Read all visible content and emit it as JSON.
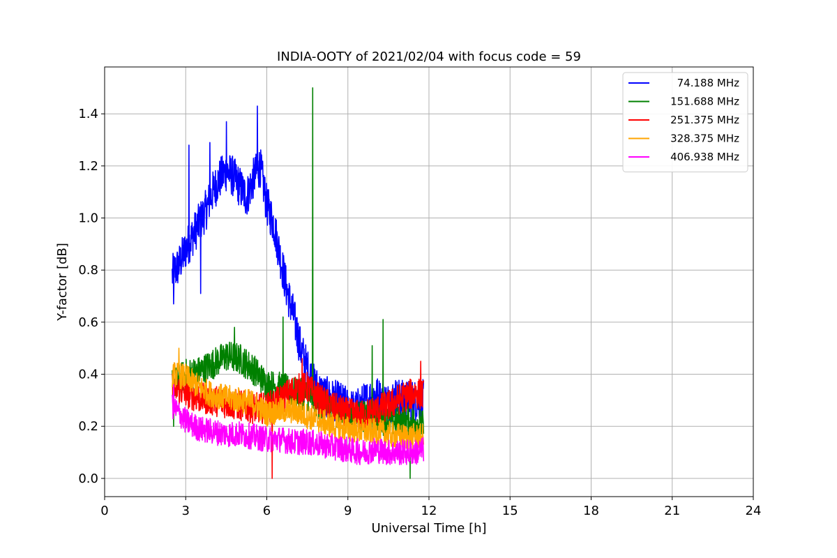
{
  "chart_data": {
    "type": "line",
    "title": "INDIA-OOTY of 2021/02/04 with focus code = 59",
    "xlabel": "Universal Time [h]",
    "ylabel": "Y-factor [dB]",
    "xlim": [
      0,
      24
    ],
    "ylim": [
      -0.07,
      1.58
    ],
    "x_ticks": [
      0,
      3,
      6,
      9,
      12,
      15,
      18,
      21,
      24
    ],
    "y_ticks": [
      0.0,
      0.2,
      0.4,
      0.6,
      0.8,
      1.0,
      1.2,
      1.4
    ],
    "y_tick_labels": [
      "0.0",
      "0.2",
      "0.4",
      "0.6",
      "0.8",
      "1.0",
      "1.2",
      "1.4"
    ],
    "grid": true,
    "legend_position": "top-right",
    "series": [
      {
        "name": "74.188 MHz",
        "color": "#0000ff",
        "x": [
          2.5,
          2.75,
          3.0,
          3.25,
          3.5,
          3.75,
          4.0,
          4.25,
          4.5,
          4.75,
          5.0,
          5.25,
          5.5,
          5.75,
          6.0,
          6.25,
          6.5,
          6.75,
          7.0,
          7.25,
          7.5,
          7.75,
          8.0,
          8.25,
          8.5,
          8.75,
          9.0,
          9.25,
          9.5,
          9.75,
          10.0,
          10.25,
          10.5,
          10.75,
          11.0,
          11.25,
          11.5,
          11.8
        ],
        "y": [
          0.78,
          0.82,
          0.88,
          0.93,
          0.98,
          1.03,
          1.1,
          1.15,
          1.18,
          1.16,
          1.12,
          1.08,
          1.15,
          1.2,
          1.05,
          0.98,
          0.85,
          0.72,
          0.62,
          0.5,
          0.42,
          0.36,
          0.33,
          0.31,
          0.3,
          0.29,
          0.27,
          0.26,
          0.28,
          0.3,
          0.32,
          0.3,
          0.29,
          0.31,
          0.3,
          0.3,
          0.3,
          0.3
        ],
        "noise": 0.08,
        "spikes": [
          [
            3.12,
            1.28
          ],
          [
            3.9,
            1.29
          ],
          [
            4.5,
            1.37
          ],
          [
            5.65,
            1.43
          ],
          [
            2.55,
            0.67
          ],
          [
            3.55,
            0.71
          ]
        ]
      },
      {
        "name": "151.688 MHz",
        "color": "#008000",
        "x": [
          2.5,
          3.0,
          3.5,
          4.0,
          4.5,
          5.0,
          5.5,
          6.0,
          6.5,
          7.0,
          7.5,
          8.0,
          8.5,
          9.0,
          9.5,
          10.0,
          10.5,
          11.0,
          11.5,
          11.8
        ],
        "y": [
          0.36,
          0.4,
          0.41,
          0.44,
          0.47,
          0.46,
          0.42,
          0.36,
          0.35,
          0.33,
          0.32,
          0.28,
          0.26,
          0.24,
          0.24,
          0.23,
          0.22,
          0.22,
          0.22,
          0.2
        ],
        "noise": 0.06,
        "spikes": [
          [
            7.7,
            1.5
          ],
          [
            6.6,
            0.62
          ],
          [
            10.3,
            0.61
          ],
          [
            9.9,
            0.51
          ],
          [
            4.8,
            0.58
          ],
          [
            2.55,
            0.2
          ],
          [
            11.3,
            0.0
          ]
        ]
      },
      {
        "name": "251.375 MHz",
        "color": "#ff0000",
        "x": [
          2.5,
          3.0,
          3.5,
          4.0,
          4.5,
          5.0,
          5.5,
          6.0,
          6.5,
          7.0,
          7.5,
          8.0,
          8.5,
          9.0,
          9.5,
          10.0,
          10.5,
          11.0,
          11.5,
          11.8
        ],
        "y": [
          0.35,
          0.33,
          0.31,
          0.3,
          0.29,
          0.28,
          0.27,
          0.27,
          0.3,
          0.34,
          0.35,
          0.3,
          0.27,
          0.25,
          0.24,
          0.26,
          0.28,
          0.31,
          0.33,
          0.32
        ],
        "noise": 0.06,
        "spikes": [
          [
            6.2,
            0.0
          ],
          [
            7.3,
            0.46
          ],
          [
            11.7,
            0.45
          ]
        ]
      },
      {
        "name": "328.375 MHz",
        "color": "#ffa500",
        "x": [
          2.5,
          3.0,
          3.5,
          4.0,
          4.5,
          5.0,
          5.5,
          6.0,
          6.5,
          7.0,
          7.5,
          8.0,
          8.5,
          9.0,
          9.5,
          10.0,
          10.5,
          11.0,
          11.5,
          11.8
        ],
        "y": [
          0.4,
          0.39,
          0.35,
          0.32,
          0.31,
          0.3,
          0.29,
          0.25,
          0.26,
          0.26,
          0.24,
          0.22,
          0.2,
          0.19,
          0.18,
          0.18,
          0.17,
          0.16,
          0.16,
          0.16
        ],
        "noise": 0.05,
        "spikes": [
          [
            2.75,
            0.5
          ]
        ]
      },
      {
        "name": "406.938 MHz",
        "color": "#ff00ff",
        "x": [
          2.5,
          3.0,
          3.5,
          4.0,
          4.5,
          5.0,
          5.5,
          6.0,
          6.5,
          7.0,
          7.5,
          8.0,
          8.5,
          9.0,
          9.5,
          10.0,
          10.5,
          11.0,
          11.5,
          11.8
        ],
        "y": [
          0.28,
          0.22,
          0.19,
          0.18,
          0.17,
          0.17,
          0.16,
          0.15,
          0.15,
          0.14,
          0.14,
          0.13,
          0.12,
          0.11,
          0.1,
          0.11,
          0.1,
          0.1,
          0.1,
          0.11
        ],
        "noise": 0.05,
        "spikes": [
          [
            2.55,
            0.36
          ]
        ]
      }
    ]
  }
}
